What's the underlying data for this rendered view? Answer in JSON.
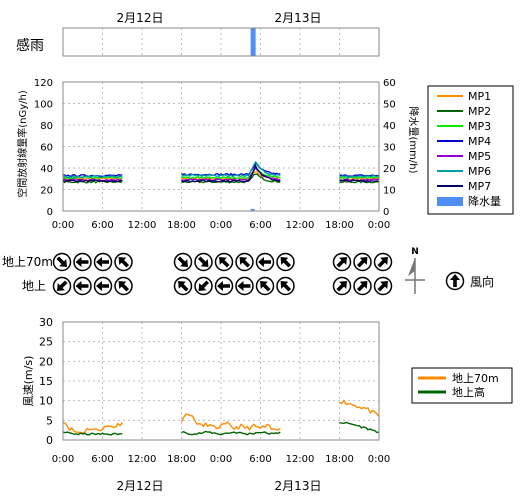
{
  "colors": {
    "MP1": "#ff8c00",
    "MP2": "#006400",
    "MP3": "#00ee00",
    "MP4": "#0000cd",
    "MP5": "#9400d3",
    "MP6": "#00a0a0",
    "MP7": "#000060",
    "rain": "#4f8ef5",
    "wind70": "#ff8c00",
    "windGround": "#006400"
  },
  "top_dates": [
    "2月12日",
    "2月13日"
  ],
  "bottom_dates": [
    "2月12日",
    "2月13日"
  ],
  "x_ticks": [
    "0:00",
    "6:00",
    "12:00",
    "18:00",
    "0:00",
    "6:00",
    "12:00",
    "18:00",
    "0:00"
  ],
  "sense_rain": {
    "label": "感雨",
    "intervals": [
      [
        28.5,
        29.0
      ]
    ]
  },
  "dose_chart": {
    "type": "line",
    "ylabel_left": "空間放射線量率(nGy/h)",
    "ylabel_right": "降水量(mm/h)",
    "y_left_ticks": [
      "0",
      "20",
      "40",
      "60",
      "80",
      "100",
      "120"
    ],
    "y_right_ticks": [
      "0",
      "10",
      "20",
      "30",
      "40",
      "50",
      "60"
    ],
    "ylim_left": [
      0,
      120
    ],
    "ylim_right": [
      0,
      60
    ],
    "xlim_hours": [
      0,
      48
    ],
    "legend": [
      "MP1",
      "MP2",
      "MP3",
      "MP4",
      "MP5",
      "MP6",
      "MP7",
      "降水量"
    ],
    "segments": [
      [
        0,
        9
      ],
      [
        18,
        33
      ],
      [
        42,
        48
      ]
    ],
    "series": [
      {
        "name": "MP1",
        "base": [
          30,
          30,
          30
        ]
      },
      {
        "name": "MP2",
        "base": [
          27,
          27,
          27
        ]
      },
      {
        "name": "MP3",
        "base": [
          31,
          31,
          31
        ]
      },
      {
        "name": "MP4",
        "base": [
          33,
          34,
          33
        ]
      },
      {
        "name": "MP5",
        "base": [
          29,
          29,
          29
        ]
      },
      {
        "name": "MP6",
        "base": [
          32,
          33,
          32
        ]
      },
      {
        "name": "MP7",
        "base": [
          28,
          28,
          28
        ]
      }
    ],
    "rain_event_hours": [
      28.5,
      29.5
    ],
    "rain_bar": {
      "hour": 28.5,
      "value": 0.5
    }
  },
  "wind_direction": {
    "rows": [
      "地上70m",
      "地上"
    ],
    "group1": {
      "upper": [
        "SE",
        "W",
        "W",
        "NW"
      ],
      "lower": [
        "SW",
        "W",
        "W",
        "NW"
      ]
    },
    "group2": {
      "upper": [
        "SE",
        "SE",
        "NW",
        "NW",
        "W",
        "NW"
      ],
      "lower": [
        "NW",
        "SW",
        "W",
        "W",
        "NW",
        "NW"
      ]
    },
    "group3": {
      "upper": [
        "NE",
        "NE",
        "NE"
      ],
      "lower": [
        "NE",
        "NE",
        "NE"
      ]
    },
    "compass_label": "N",
    "legend_label": "風向"
  },
  "wind_chart": {
    "type": "line",
    "ylabel": "風速(m/s)",
    "y_ticks": [
      "0",
      "5",
      "10",
      "15",
      "20",
      "25",
      "30"
    ],
    "ylim": [
      0,
      30
    ],
    "legend": [
      "地上70m",
      "地上高"
    ],
    "series": [
      {
        "name": "地上70m",
        "segments": [
          {
            "x": [
              0,
              1,
              2,
              3,
              4,
              5,
              6,
              7,
              8,
              9
            ],
            "y": [
              5,
              3,
              2,
              2,
              3,
              2.5,
              3,
              3.5,
              3.5,
              4.5
            ]
          },
          {
            "x": [
              18,
              19,
              20,
              21,
              22,
              23,
              24,
              25,
              26,
              27,
              28,
              29,
              30,
              31,
              32,
              33
            ],
            "y": [
              5,
              7,
              5,
              3.5,
              4,
              3,
              3.5,
              4,
              3,
              3.5,
              3,
              3.5,
              3,
              3.5,
              2.5,
              3
            ]
          },
          {
            "x": [
              42,
              43,
              44,
              45,
              46,
              47,
              48
            ],
            "y": [
              10,
              9.5,
              9,
              8.5,
              8,
              7,
              6
            ]
          }
        ]
      },
      {
        "name": "地上高",
        "segments": [
          {
            "x": [
              0,
              2,
              4,
              6,
              8,
              9
            ],
            "y": [
              2,
              1.5,
              1.5,
              1.5,
              1.5,
              1.5
            ]
          },
          {
            "x": [
              18,
              20,
              22,
              24,
              26,
              28,
              30,
              32,
              33
            ],
            "y": [
              2,
              1.5,
              2,
              1.5,
              2,
              1.5,
              2,
              1.5,
              2
            ]
          },
          {
            "x": [
              42,
              44,
              46,
              48
            ],
            "y": [
              4.5,
              4,
              3,
              2
            ]
          }
        ]
      }
    ]
  }
}
